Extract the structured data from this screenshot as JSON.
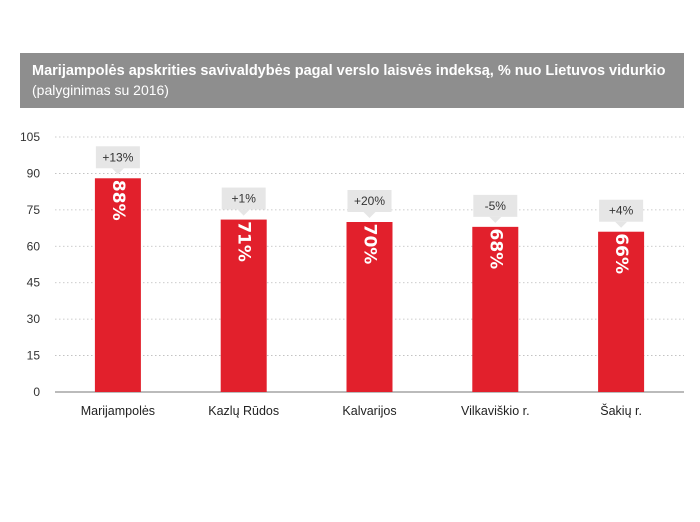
{
  "header": {
    "title": "Marijampolės apskrities savivaldybės pagal verslo laisvės indeksą, % nuo Lietuvos vidurkio",
    "subtitle": "(palyginimas su 2016)"
  },
  "chart_data": {
    "type": "bar",
    "title": "Marijampolės apskrities savivaldybės pagal verslo laisvės indeksą, % nuo Lietuvos vidurkio",
    "subtitle": "(palyginimas su 2016)",
    "categories": [
      "Marijampolės",
      "Kazlų Rūdos",
      "Kalvarijos",
      "Vilkaviškio r.",
      "Šakių r."
    ],
    "values": [
      88,
      71,
      70,
      68,
      66
    ],
    "value_labels": [
      "88%",
      "71%",
      "70%",
      "68%",
      "66%"
    ],
    "change_labels": [
      "+13%",
      "+1%",
      "+20%",
      "-5%",
      "+4%"
    ],
    "ylim": [
      0,
      105
    ],
    "yticks": [
      0,
      15,
      30,
      45,
      60,
      75,
      90,
      105
    ],
    "grid": true,
    "colors": {
      "bar": "#e2202c",
      "callout": "#e6e6e6",
      "header": "#8e8e8e",
      "grid": "#bbbbbb"
    }
  }
}
